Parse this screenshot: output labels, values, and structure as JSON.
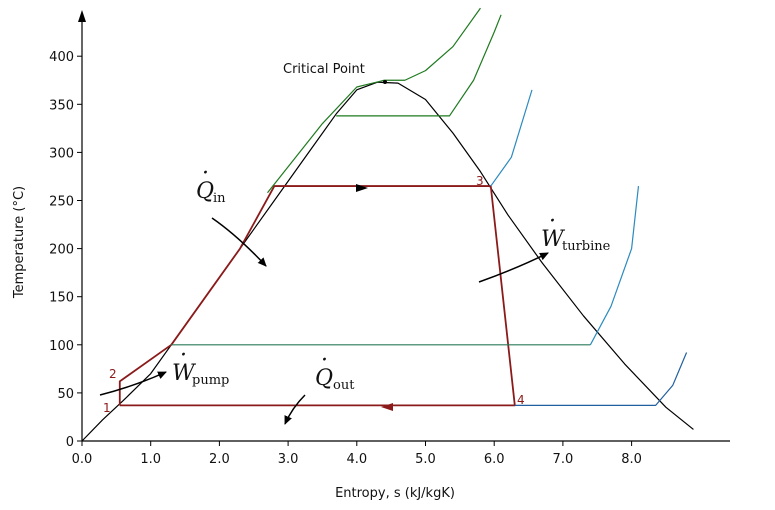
{
  "chart_data": {
    "type": "line",
    "title": "",
    "xlabel": "Entropy, s  (kJ/kgK)",
    "ylabel": "Temperature (°C)",
    "xlim": [
      0,
      9
    ],
    "ylim": [
      0,
      450
    ],
    "xticks": [
      "0.0",
      "1.0",
      "2.0",
      "3.0",
      "4.0",
      "5.0",
      "6.0",
      "7.0",
      "8.0"
    ],
    "xtick_values": [
      0,
      1,
      2,
      3,
      4,
      5,
      6,
      7,
      8
    ],
    "yticks": [
      "0",
      "50",
      "100",
      "150",
      "200",
      "250",
      "300",
      "350",
      "400"
    ],
    "ytick_values": [
      0,
      50,
      100,
      150,
      200,
      250,
      300,
      350,
      400
    ],
    "grid": false,
    "annotations": {
      "critical_point": "Critical Point",
      "q_in_symbol": "Q",
      "q_in_sub": "in",
      "q_out_symbol": "Q",
      "q_out_sub": "out",
      "w_pump_symbol": "W",
      "w_pump_sub": "pump",
      "w_turbine_symbol": "W",
      "w_turbine_sub": "turbine",
      "state_1": "1",
      "state_2": "2",
      "state_3": "3",
      "state_4": "4"
    },
    "series": [
      {
        "color": "#000000",
        "points": [
          [
            0.0,
            0
          ],
          [
            0.3,
            22
          ],
          [
            0.6,
            42
          ],
          [
            1.0,
            70
          ],
          [
            1.3,
            100
          ],
          [
            1.8,
            150
          ],
          [
            2.3,
            200
          ],
          [
            2.8,
            250
          ],
          [
            3.3,
            300
          ],
          [
            3.7,
            340
          ],
          [
            4.0,
            365
          ],
          [
            4.3,
            373
          ],
          [
            4.6,
            372
          ],
          [
            5.0,
            355
          ],
          [
            5.4,
            320
          ],
          [
            5.8,
            280
          ],
          [
            6.2,
            235
          ],
          [
            6.7,
            185
          ],
          [
            7.3,
            130
          ],
          [
            7.9,
            80
          ],
          [
            8.5,
            35
          ],
          [
            8.9,
            12
          ]
        ]
      },
      {
        "color": "#8b1a1a",
        "points": [
          [
            0.55,
            37
          ],
          [
            0.55,
            62
          ],
          [
            1.3,
            100
          ],
          [
            1.8,
            150
          ],
          [
            2.3,
            200
          ],
          [
            2.8,
            265
          ],
          [
            5.95,
            265
          ],
          [
            6.3,
            37
          ],
          [
            0.55,
            37
          ]
        ]
      },
      {
        "color": "#1f7a1f",
        "points": [
          [
            2.7,
            258
          ],
          [
            3.5,
            330
          ],
          [
            4.0,
            368
          ],
          [
            4.4,
            375
          ],
          [
            4.7,
            375
          ],
          [
            5.0,
            385
          ],
          [
            5.4,
            410
          ],
          [
            5.8,
            450
          ]
        ]
      },
      {
        "color": "#1f7a1f",
        "points": [
          [
            3.7,
            338
          ],
          [
            5.35,
            338
          ],
          [
            5.7,
            375
          ],
          [
            6.0,
            425
          ],
          [
            6.1,
            443
          ]
        ]
      },
      {
        "color": "#2a7a5a",
        "points": [
          [
            1.3,
            100
          ],
          [
            7.4,
            100
          ]
        ]
      },
      {
        "color": "#2060a0",
        "points": [
          [
            6.3,
            37
          ],
          [
            8.35,
            37
          ],
          [
            8.6,
            58
          ],
          [
            8.8,
            92
          ]
        ]
      },
      {
        "color": "#2b8ac0",
        "points": [
          [
            7.4,
            100
          ],
          [
            7.7,
            140
          ],
          [
            8.0,
            200
          ],
          [
            8.1,
            265
          ]
        ]
      },
      {
        "color": "#2b8ac0",
        "points": [
          [
            5.95,
            265
          ],
          [
            6.25,
            295
          ],
          [
            6.55,
            365
          ]
        ]
      }
    ]
  }
}
